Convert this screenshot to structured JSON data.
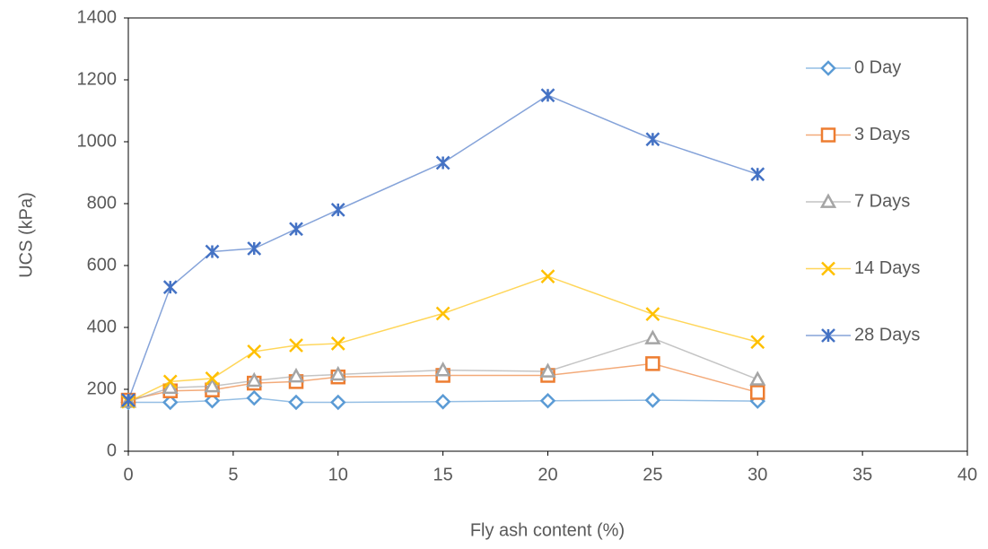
{
  "chart_data": {
    "type": "line",
    "x_label": "Fly ash content (%)",
    "y_label": "UCS (kPa)",
    "x": [
      0,
      2,
      4,
      6,
      8,
      10,
      15,
      20,
      25,
      30
    ],
    "xlim": [
      0,
      40
    ],
    "xticks": [
      0,
      5,
      10,
      15,
      20,
      25,
      30,
      35,
      40
    ],
    "ylim": [
      0,
      1400
    ],
    "yticks": [
      0,
      200,
      400,
      600,
      800,
      1000,
      1200,
      1400
    ],
    "grid": false,
    "legend": "right",
    "series": [
      {
        "name": "0 Day",
        "color": "#5b9bd5",
        "marker": "diamond",
        "values": [
          158,
          158,
          163,
          172,
          158,
          158,
          160,
          163,
          165,
          162
        ]
      },
      {
        "name": "3 Days",
        "color": "#ed7d31",
        "marker": "square",
        "values": [
          165,
          195,
          198,
          220,
          225,
          240,
          245,
          245,
          283,
          190
        ]
      },
      {
        "name": "7 Days",
        "color": "#a5a5a5",
        "marker": "triangle",
        "values": [
          160,
          205,
          210,
          228,
          242,
          248,
          262,
          258,
          365,
          232
        ]
      },
      {
        "name": "14 Days",
        "color": "#ffc000",
        "marker": "x",
        "values": [
          160,
          225,
          235,
          322,
          342,
          348,
          445,
          565,
          443,
          353
        ]
      },
      {
        "name": "28 Days",
        "color": "#4472c4",
        "marker": "asterisk",
        "values": [
          165,
          530,
          645,
          655,
          718,
          780,
          932,
          1150,
          1008,
          895
        ]
      }
    ]
  }
}
